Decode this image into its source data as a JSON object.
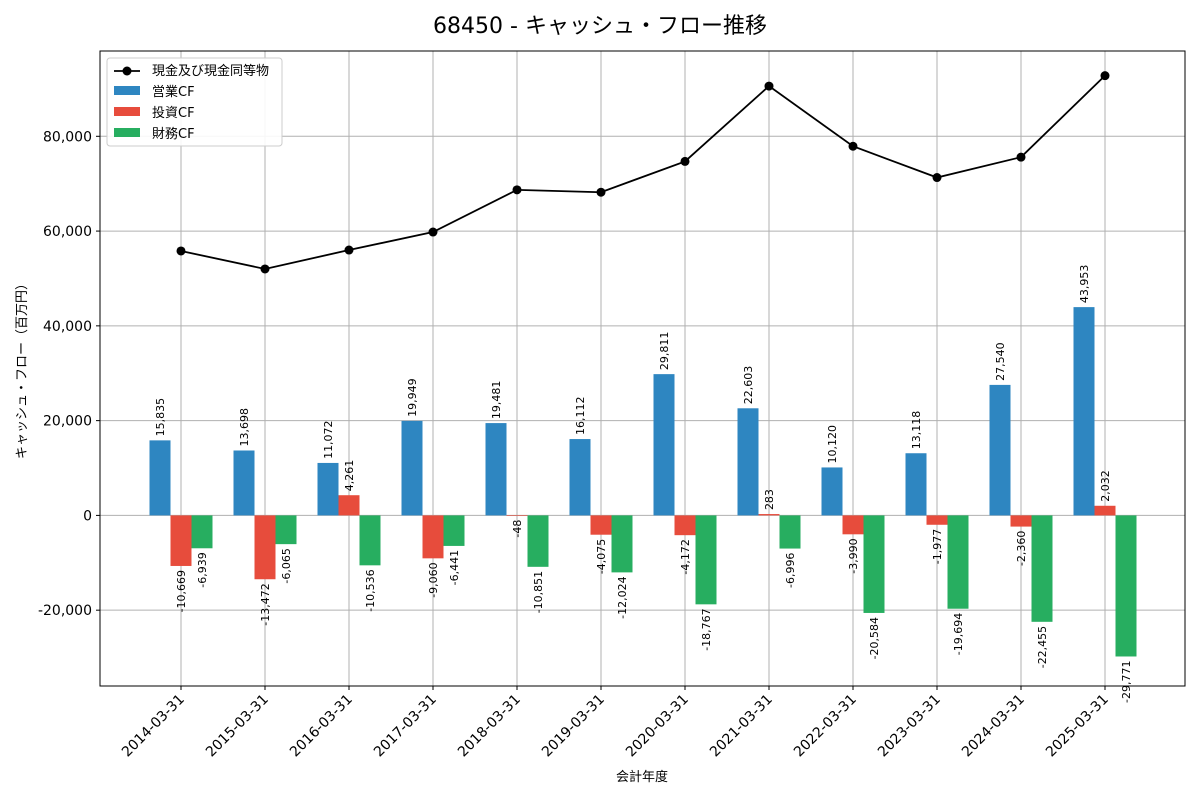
{
  "chart_data": {
    "type": "bar",
    "title": "68450 - キャッシュ・フロー推移",
    "xlabel": "会計年度",
    "ylabel": "キャッシュ・フロー（百万円）",
    "ylim": [
      -36000,
      98000
    ],
    "yticks": [
      -20000,
      0,
      20000,
      40000,
      60000,
      80000
    ],
    "ytick_labels": [
      "-20,000",
      "0",
      "20,000",
      "40,000",
      "60,000",
      "80,000"
    ],
    "grid": true,
    "legend_position": "top-left",
    "categories": [
      "2014-03-31",
      "2015-03-31",
      "2016-03-31",
      "2017-03-31",
      "2018-03-31",
      "2019-03-31",
      "2020-03-31",
      "2021-03-31",
      "2022-03-31",
      "2023-03-31",
      "2024-03-31",
      "2025-03-31"
    ],
    "line_series": {
      "name": "現金及び現金同等物",
      "color": "#000000",
      "values": [
        55800,
        52000,
        56000,
        59800,
        68700,
        68200,
        74700,
        90600,
        77900,
        71300,
        75600,
        92800
      ]
    },
    "series": [
      {
        "name": "営業CF",
        "color": "#2e86c1",
        "values": [
          15835,
          13698,
          11072,
          19949,
          19481,
          16112,
          29811,
          22603,
          10120,
          13118,
          27540,
          43953
        ],
        "labels": [
          "15,835",
          "13,698",
          "11,072",
          "19,949",
          "19,481",
          "16,112",
          "29,811",
          "22,603",
          "10,120",
          "13,118",
          "27,540",
          "43,953"
        ]
      },
      {
        "name": "投資CF",
        "color": "#e74c3c",
        "values": [
          -10669,
          -13472,
          4261,
          -9060,
          -48,
          -4075,
          -4172,
          283,
          -3990,
          -1977,
          -2360,
          2032
        ],
        "labels": [
          "-10,669",
          "-13,472",
          "4,261",
          "-9,060",
          "-48",
          "-4,075",
          "-4,172",
          "283",
          "-3,990",
          "-1,977",
          "-2,360",
          "2,032"
        ]
      },
      {
        "name": "財務CF",
        "color": "#27ae60",
        "values": [
          -6939,
          -6065,
          -10536,
          -6441,
          -10851,
          -12024,
          -18767,
          -6996,
          -20584,
          -19694,
          -22455,
          -29771
        ],
        "labels": [
          "-6,939",
          "-6,065",
          "-10,536",
          "-6,441",
          "-10,851",
          "-12,024",
          "-18,767",
          "-6,996",
          "-20,584",
          "-19,694",
          "-22,455",
          "-29,771"
        ]
      }
    ]
  }
}
